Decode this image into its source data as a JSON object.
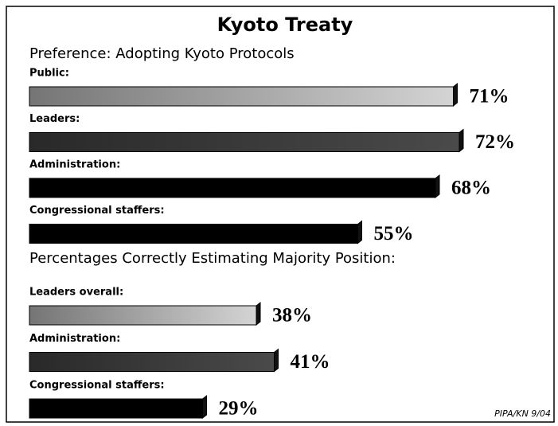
{
  "title": "Kyoto Treaty",
  "chart_data": [
    {
      "type": "bar",
      "subtitle": "Preference:  Adopting Kyoto Protocols",
      "categories": [
        "Public:",
        "Leaders:",
        "Administration:",
        "Congressional staffers:"
      ],
      "values": [
        71,
        72,
        68,
        55
      ],
      "value_labels": [
        "71%",
        "72%",
        "68%",
        "55%"
      ],
      "colors": [
        "#d4d4d4",
        "#4a4a4a",
        "#000000",
        "#000000"
      ]
    },
    {
      "type": "bar",
      "subtitle": "Percentages Correctly Estimating Majority Position:",
      "categories": [
        "Leaders overall:",
        "Administration:",
        "Congressional staffers:"
      ],
      "values": [
        38,
        41,
        29
      ],
      "value_labels": [
        "38%",
        "41%",
        "29%"
      ],
      "colors": [
        "#d4d4d4",
        "#4a4a4a",
        "#000000"
      ]
    }
  ],
  "source": "PIPA/KN 9/04"
}
